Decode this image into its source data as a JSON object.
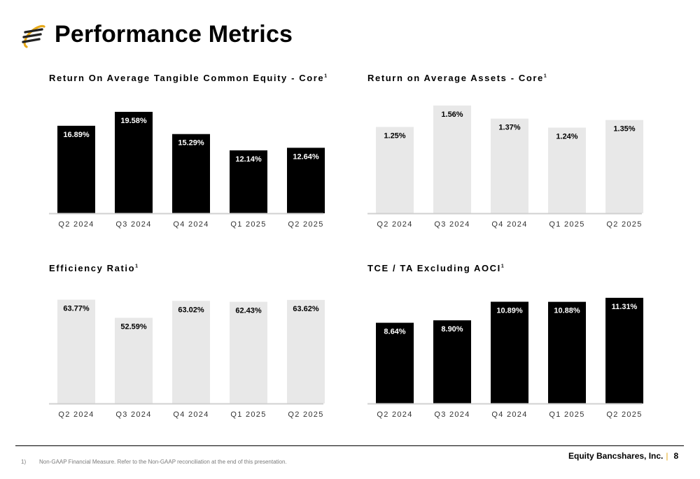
{
  "header": {
    "title": "Performance Metrics"
  },
  "chart_data": [
    {
      "type": "bar",
      "title": "Return On Average Tangible Common Equity - Core",
      "title_sup": "1",
      "categories": [
        "Q2 2024",
        "Q3 2024",
        "Q4 2024",
        "Q1 2025",
        "Q2 2025"
      ],
      "values": [
        16.89,
        19.58,
        15.29,
        12.14,
        12.64
      ],
      "value_labels": [
        "16.89%",
        "19.58%",
        "15.29%",
        "12.14%",
        "12.64%"
      ],
      "ylim": [
        0,
        22
      ],
      "bar_color": "#000000",
      "label_color": "#ffffff",
      "grid": false
    },
    {
      "type": "bar",
      "title": "Return on Average Assets - Core",
      "title_sup": "1",
      "categories": [
        "Q2 2024",
        "Q3 2024",
        "Q4 2024",
        "Q1 2025",
        "Q2 2025"
      ],
      "values": [
        1.25,
        1.56,
        1.37,
        1.24,
        1.35
      ],
      "value_labels": [
        "1.25%",
        "1.56%",
        "1.37%",
        "1.24%",
        "1.35%"
      ],
      "ylim": [
        0,
        1.65
      ],
      "bar_color": "#e8e8e8",
      "label_color": "#000000",
      "grid": false
    },
    {
      "type": "bar",
      "title": "Efficiency Ratio",
      "title_sup": "1",
      "categories": [
        "Q2 2024",
        "Q3 2024",
        "Q4 2024",
        "Q1 2025",
        "Q2 2025"
      ],
      "values": [
        63.77,
        52.59,
        63.02,
        62.43,
        63.62
      ],
      "value_labels": [
        "63.77%",
        "52.59%",
        "63.02%",
        "62.43%",
        "63.62%"
      ],
      "ylim": [
        0,
        70
      ],
      "bar_color": "#e8e8e8",
      "label_color": "#000000",
      "grid": false
    },
    {
      "type": "bar",
      "title": "TCE / TA Excluding AOCI",
      "title_sup": "1",
      "categories": [
        "Q2 2024",
        "Q3 2024",
        "Q4 2024",
        "Q1 2025",
        "Q2 2025"
      ],
      "values": [
        8.64,
        8.9,
        10.89,
        10.88,
        11.31
      ],
      "value_labels": [
        "8.64%",
        "8.90%",
        "10.89%",
        "10.88%",
        "11.31%"
      ],
      "ylim": [
        0,
        12.2
      ],
      "bar_color": "#000000",
      "label_color": "#ffffff",
      "grid": false
    }
  ],
  "footer": {
    "footnote_number": "1)",
    "footnote_text": "Non-GAAP Financial Measure. Refer to the Non-GAAP reconciliation at the end of this presentation.",
    "company": "Equity Bancshares, Inc.",
    "separator": "|",
    "page_number": "8"
  },
  "colors": {
    "accent": "#e6a817",
    "dark_bar": "#000000",
    "light_bar": "#e8e8e8",
    "axis": "#d0d0d0"
  },
  "icons": {
    "logo": "equity-bancshares-logo-icon"
  }
}
